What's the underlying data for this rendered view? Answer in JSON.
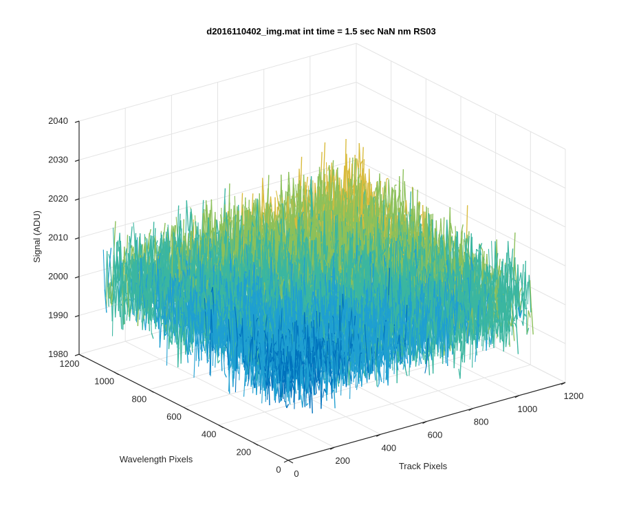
{
  "chart_data": {
    "type": "surface",
    "title": "d2016110402_img.mat int time = 1.5 sec  NaN nm RS03",
    "xlabel": "Track Pixels",
    "ylabel": "Wavelength Pixels",
    "zlabel": "Signal (ADU)",
    "xlim": [
      0,
      1200
    ],
    "ylim": [
      0,
      1200
    ],
    "zlim": [
      1980,
      2040
    ],
    "xticks": [
      "0",
      "200",
      "400",
      "600",
      "800",
      "1000",
      "1200"
    ],
    "yticks": [
      "0",
      "200",
      "400",
      "600",
      "800",
      "1000",
      "1200"
    ],
    "zticks": [
      "1980",
      "1990",
      "2000",
      "2010",
      "2020",
      "2030",
      "2040"
    ],
    "grid": true,
    "surface": {
      "x_range": [
        0,
        1056
      ],
      "y_range": [
        0,
        1056
      ],
      "mean_signal": 2000,
      "noise_range": [
        1990,
        2030
      ],
      "colormap": [
        "#0072BD",
        "#1f9fd1",
        "#3bb6a0",
        "#8cc05a",
        "#d9bb3c"
      ]
    }
  }
}
